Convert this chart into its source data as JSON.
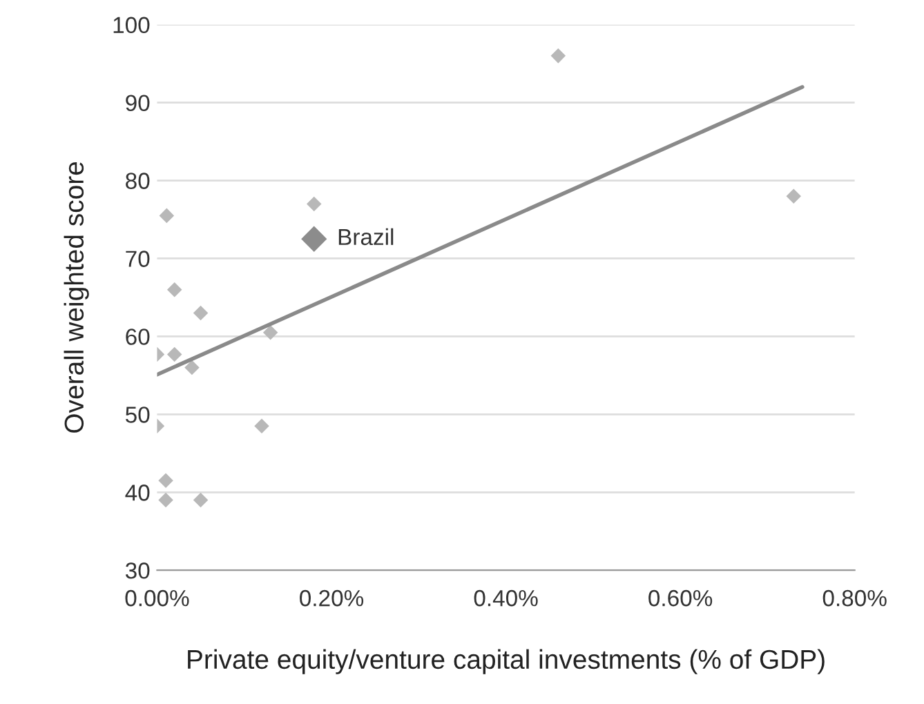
{
  "chart_data": {
    "type": "scatter",
    "xlabel": "Private equity/venture capital investments (% of GDP)",
    "ylabel": "Overall weighted score",
    "series": [
      {
        "color": "#b8b8b8",
        "marker": "diamond",
        "x": [
          0.011,
          0.18,
          0.02,
          0.05,
          0.0,
          0.02,
          0.04,
          0.13,
          0.0,
          0.12,
          0.01,
          0.01,
          0.05,
          0.46,
          0.73
        ],
        "values": [
          75.5,
          77,
          66,
          63,
          57.7,
          57.7,
          56,
          60.5,
          48.5,
          48.5,
          41.5,
          39,
          39,
          96,
          78
        ]
      },
      {
        "color": "#8c8c8c",
        "marker": "diamond",
        "x": [
          0.18
        ],
        "values": [
          72.5
        ]
      },
      {
        "type": "line",
        "color": "#8a8a8a",
        "marker": "none",
        "x": [
          0.0,
          0.74
        ],
        "values": [
          55.1,
          92.0
        ]
      }
    ],
    "annotations": [
      {
        "text": "Brazil",
        "x": 0.18,
        "y": 72.5
      }
    ],
    "xlim": [
      0,
      0.8
    ],
    "xticks": [
      {
        "value": 0,
        "label": "0.00%"
      },
      {
        "value": 0.2,
        "label": "0.20%"
      },
      {
        "value": 0.4,
        "label": "0.40%"
      },
      {
        "value": 0.6,
        "label": "0.60%"
      },
      {
        "value": 0.8,
        "label": "0.80%"
      }
    ],
    "ylim": [
      30,
      100
    ],
    "yticks": [
      30,
      40,
      50,
      60,
      70,
      80,
      90,
      100
    ],
    "grid": "y",
    "legend": false
  }
}
